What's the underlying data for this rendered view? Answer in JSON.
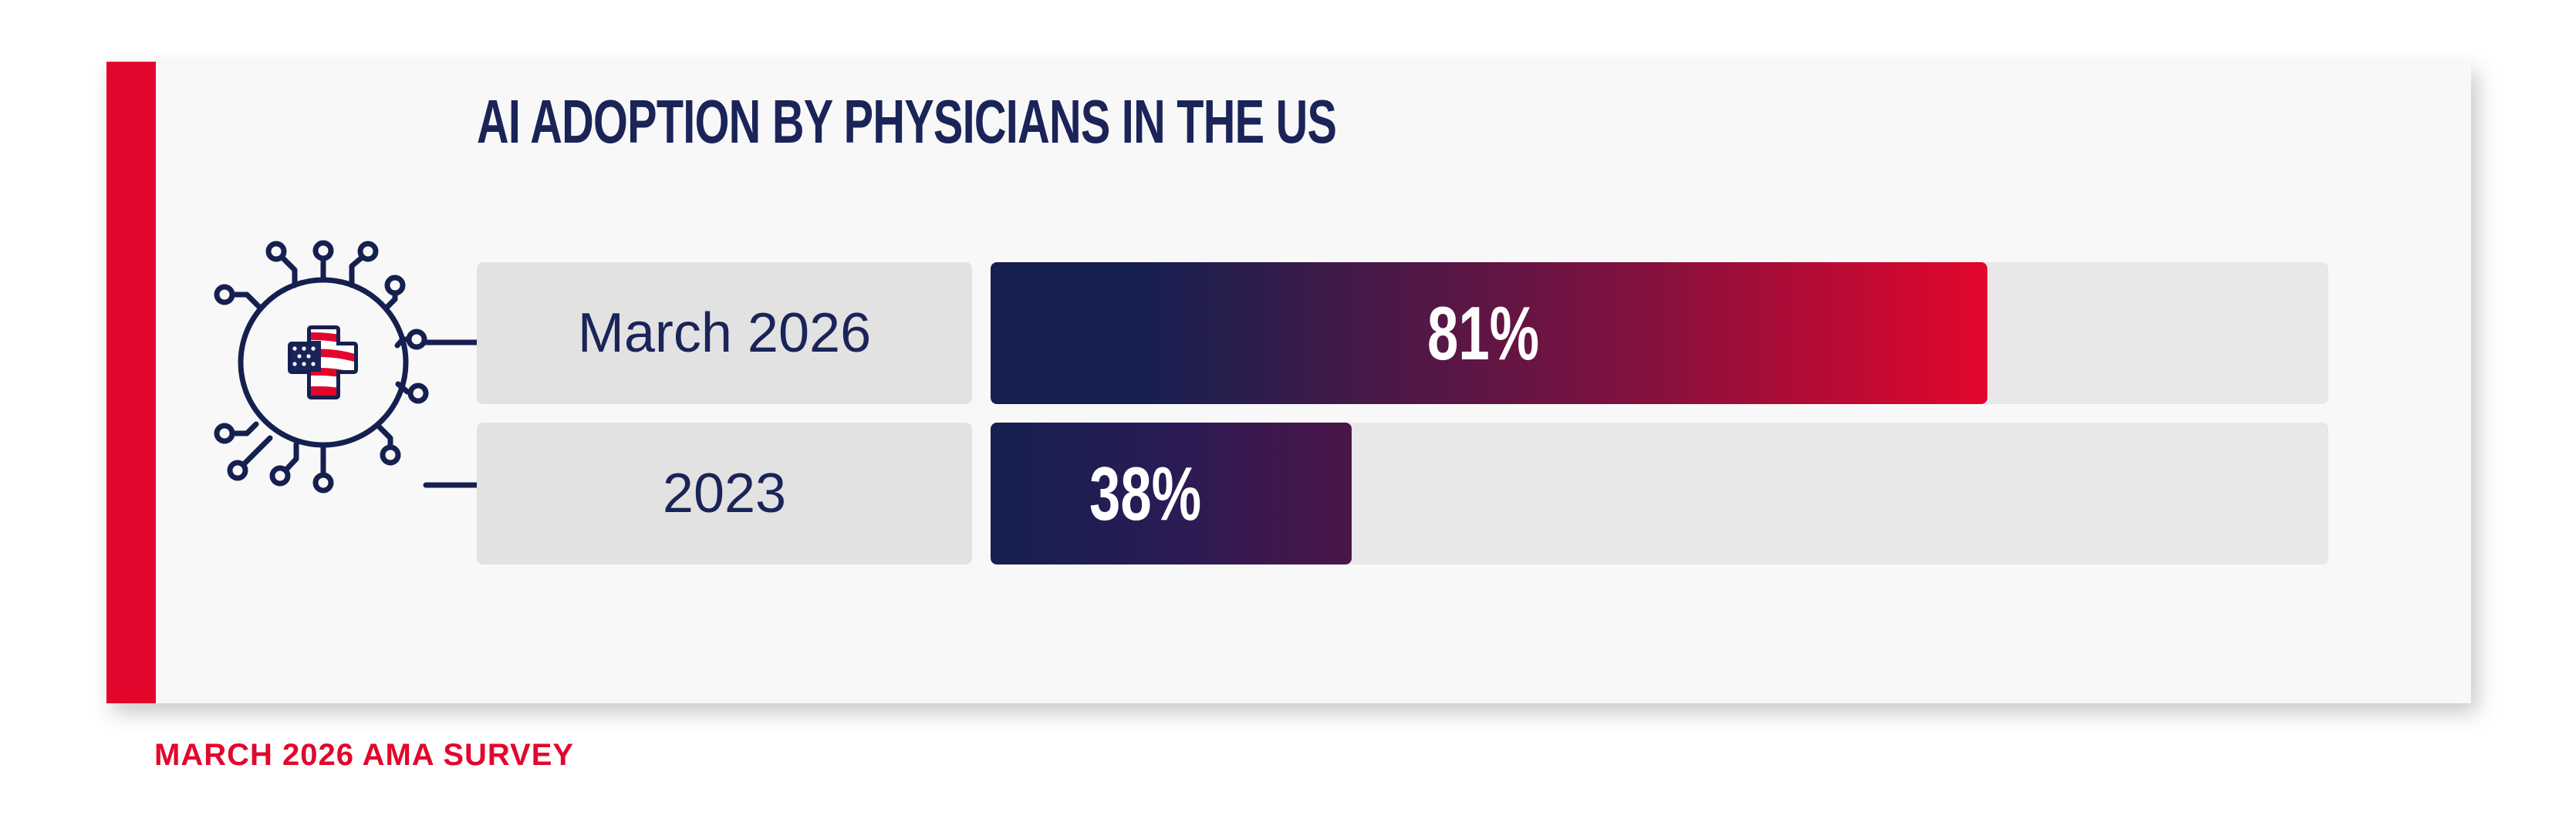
{
  "colors": {
    "navy": "#152050",
    "red": "#e3062c",
    "accent": "#e3062c",
    "text_dark": "#1b2458"
  },
  "icon": "medical-cross-us-flag-circuit-icon",
  "chart_data": {
    "type": "bar",
    "orientation": "horizontal",
    "title": "AI ADOPTION BY PHYSICIANS IN THE US",
    "categories": [
      "March 2026",
      "2023"
    ],
    "values": [
      81,
      38
    ],
    "value_labels": [
      "81%",
      "38%"
    ],
    "xlim": [
      0,
      100
    ],
    "unit": "%",
    "grid": false,
    "legend": "none"
  },
  "footnote": "MARCH 2026 AMA SURVEY"
}
